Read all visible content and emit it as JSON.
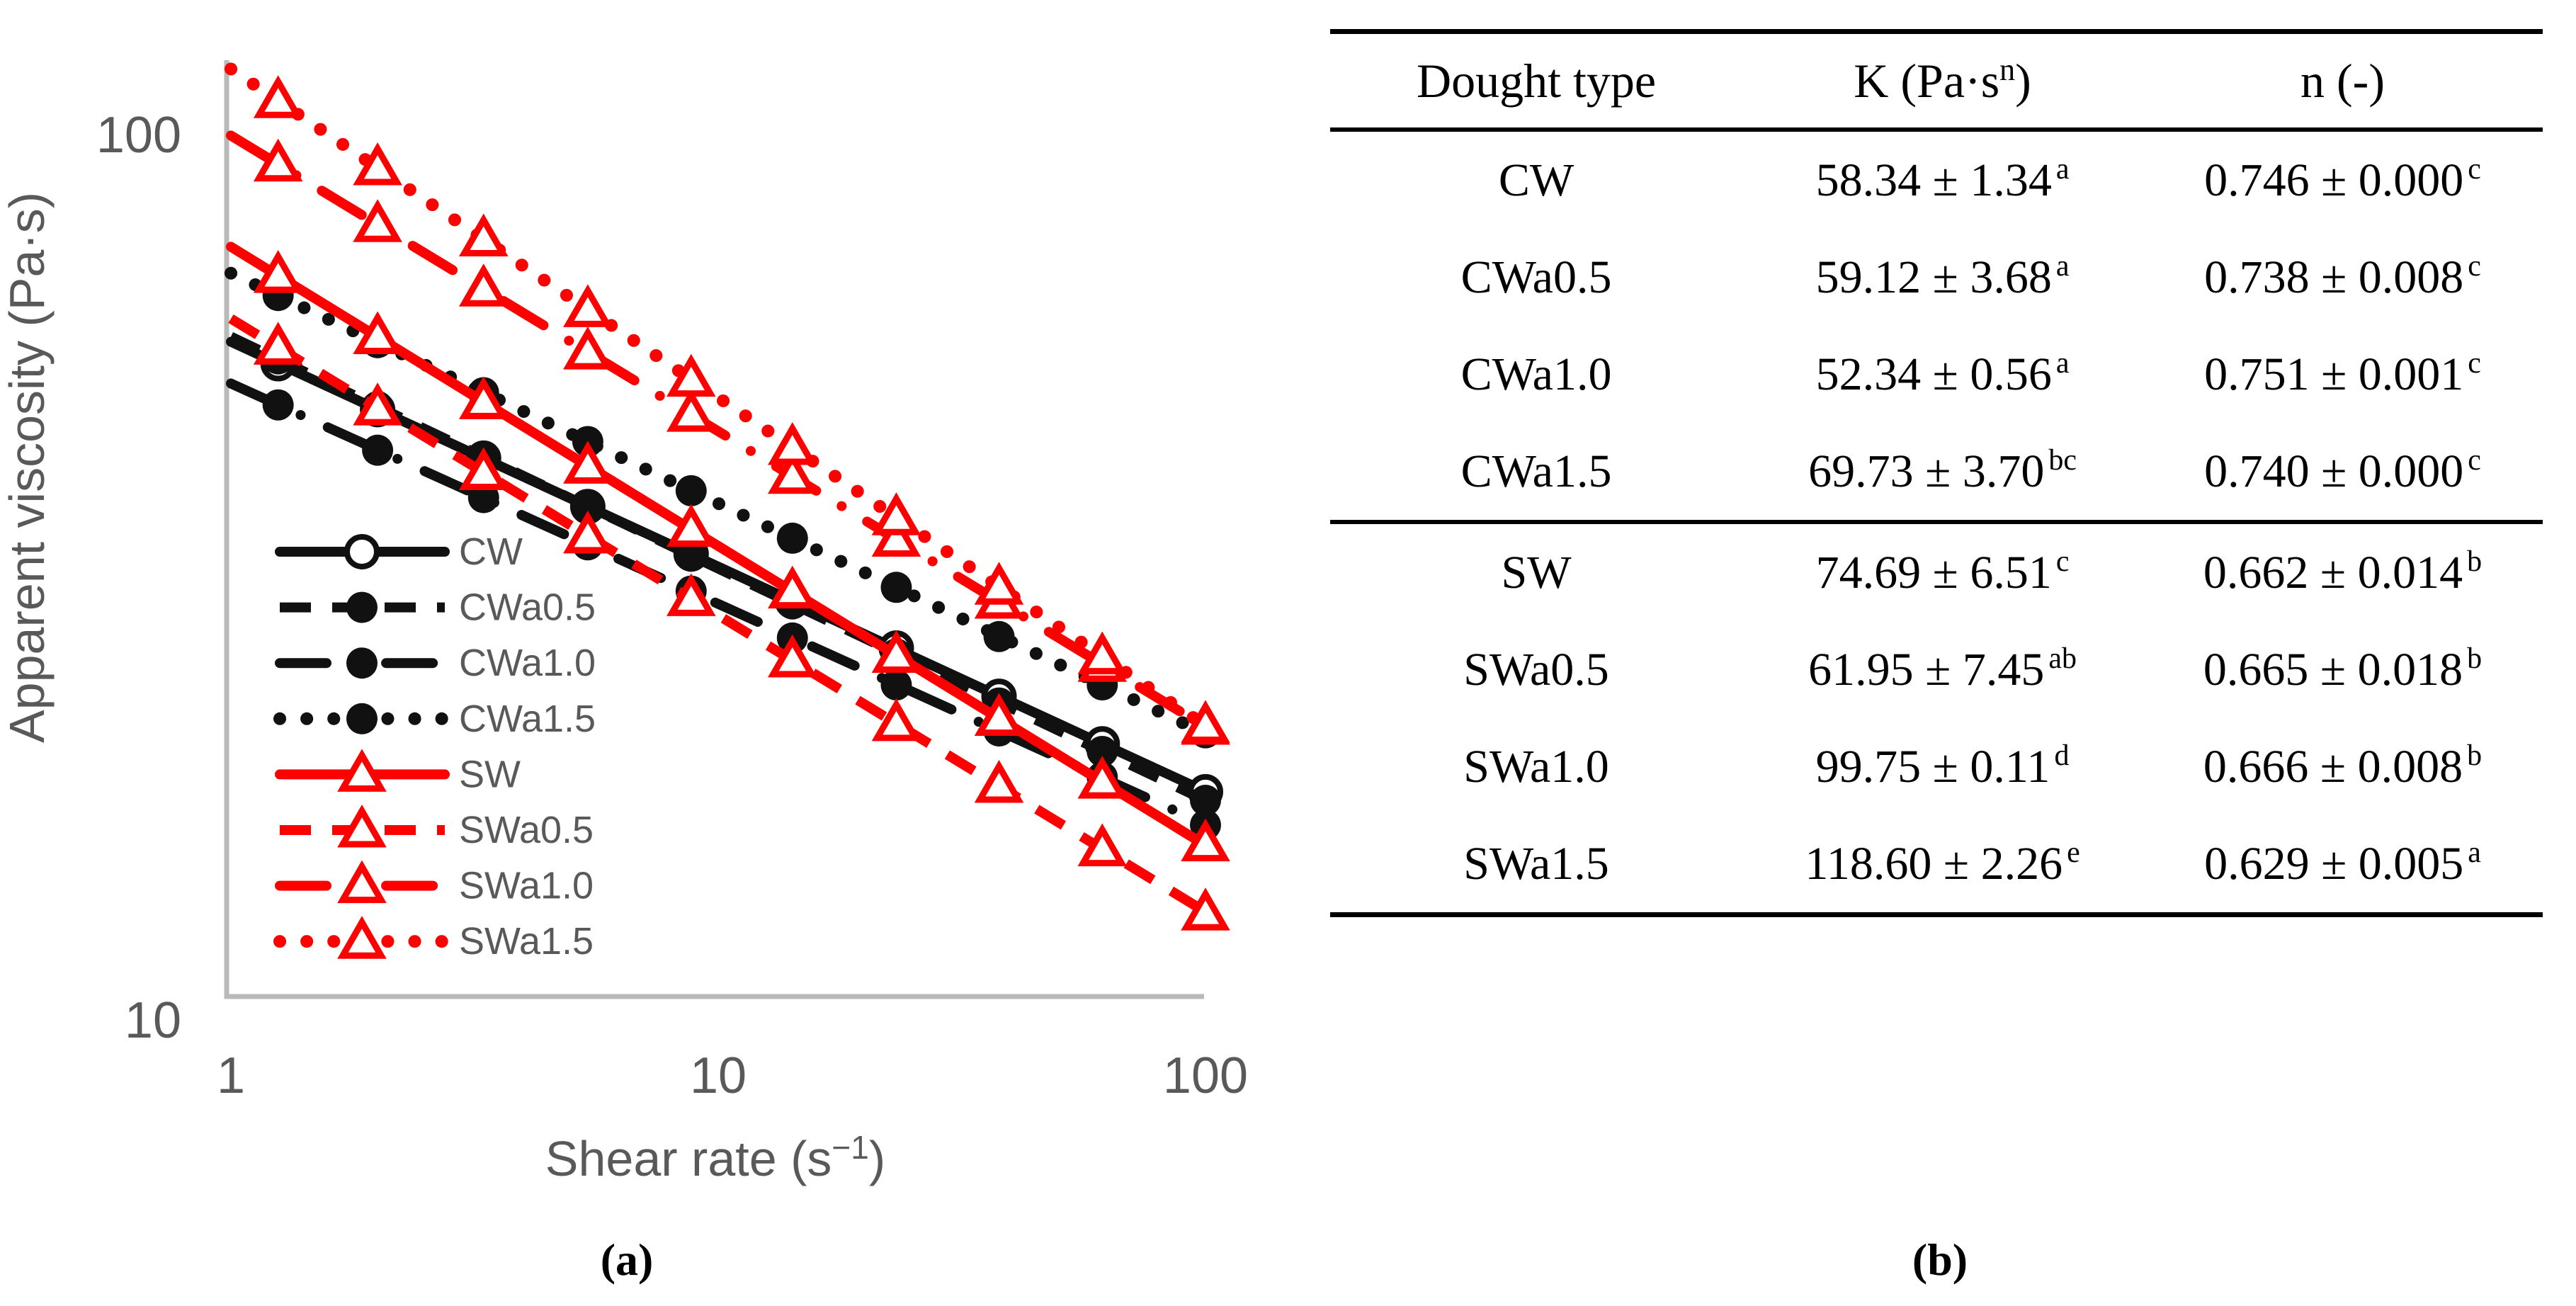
{
  "figure": {
    "caption_a": "(a)",
    "caption_b": "(b)"
  },
  "chart": {
    "y_axis": {
      "label": "Apparent viscosity (Pa·s)",
      "ticks": [
        "100",
        "10"
      ],
      "tick_values": [
        100,
        10
      ]
    },
    "x_axis": {
      "label_prefix": "Shear rate (s",
      "label_sup": "−1",
      "label_suffix": ")",
      "ticks": [
        "1",
        "10",
        "100"
      ],
      "tick_values": [
        1,
        10,
        100
      ]
    },
    "colors": {
      "black": "#111111",
      "red": "#ff0000",
      "axis_text": "#595959",
      "frame": "#b9b9b9"
    }
  },
  "chart_data": {
    "type": "line",
    "xscale": "log",
    "yscale": "log",
    "xlabel": "Shear rate (s⁻¹)",
    "ylabel": "Apparent viscosity (Pa·s)",
    "xlim": [
      1,
      100
    ],
    "ylim": [
      10.6,
      121
    ],
    "grid": false,
    "legend_position": "inside lower-left",
    "x": [
      1.25,
      2.0,
      3.3,
      5.4,
      8.8,
      14.2,
      23.2,
      37.7,
      61.4,
      100
    ],
    "series": [
      {
        "name": "CW",
        "color": "black",
        "line": "solid",
        "marker": "circle-open",
        "fit": {
          "K": 58.34,
          "n": 0.746
        },
        "values": [
          55.1,
          48.9,
          43.1,
          38.0,
          33.6,
          29.7,
          26.3,
          23.2,
          20.5,
          18.1
        ]
      },
      {
        "name": "CWa0.5",
        "color": "black",
        "line": "dashed",
        "marker": "circle-filled",
        "fit": {
          "K": 59.12,
          "n": 0.738
        },
        "values": [
          55.8,
          49.3,
          43.2,
          38.0,
          33.4,
          29.5,
          25.9,
          22.8,
          20.1,
          17.7
        ]
      },
      {
        "name": "CWa1.0",
        "color": "black",
        "line": "dashdot",
        "marker": "circle-filled",
        "fit": {
          "K": 52.34,
          "n": 0.751
        },
        "values": [
          49.5,
          44.0,
          38.9,
          34.4,
          30.5,
          27.0,
          23.9,
          21.2,
          18.8,
          16.6
        ]
      },
      {
        "name": "CWa1.5",
        "color": "black",
        "line": "dotted",
        "marker": "circle-filled",
        "fit": {
          "K": 69.73,
          "n": 0.74
        },
        "values": [
          65.8,
          58.2,
          51.1,
          45.0,
          39.6,
          35.0,
          30.8,
          27.1,
          23.9,
          21.1
        ]
      },
      {
        "name": "SW",
        "color": "red",
        "line": "solid",
        "marker": "triangle-open",
        "fit": {
          "K": 74.69,
          "n": 0.662
        },
        "values": [
          69.3,
          59.1,
          49.9,
          42.2,
          35.8,
          30.5,
          25.8,
          21.9,
          18.6,
          15.8
        ]
      },
      {
        "name": "SWa0.5",
        "color": "red",
        "line": "dashed",
        "marker": "triangle-open",
        "fit": {
          "K": 61.95,
          "n": 0.665
        },
        "values": [
          57.5,
          49.1,
          41.5,
          35.2,
          29.9,
          25.5,
          21.6,
          18.4,
          15.6,
          13.2
        ]
      },
      {
        "name": "SWa1.0",
        "color": "red",
        "line": "dashdot",
        "marker": "triangle-open",
        "fit": {
          "K": 99.75,
          "n": 0.666
        },
        "values": [
          92.6,
          79.1,
          66.9,
          56.8,
          48.3,
          41.1,
          34.9,
          29.7,
          25.2,
          21.4
        ]
      },
      {
        "name": "SWa1.5",
        "color": "red",
        "line": "dotted",
        "marker": "triangle-open",
        "fit": {
          "K": 118.6,
          "n": 0.629
        },
        "values": [
          109.2,
          91.7,
          76.2,
          63.4,
          52.9,
          44.3,
          36.9,
          30.8,
          25.7,
          21.5
        ]
      }
    ]
  },
  "table": {
    "headers": {
      "col1": "Dought type",
      "col2_prefix": "K (Pa·s",
      "col2_sup": "n",
      "col2_suffix": ")",
      "col3": "n (-)"
    },
    "group_break_after": 4,
    "rows": [
      {
        "dough": "CW",
        "k": "58.34 ± 1.34",
        "k_sup": "a",
        "n": "0.746 ± 0.000",
        "n_sup": "c"
      },
      {
        "dough": "CWa0.5",
        "k": "59.12 ± 3.68",
        "k_sup": "a",
        "n": "0.738 ± 0.008",
        "n_sup": "c"
      },
      {
        "dough": "CWa1.0",
        "k": "52.34 ± 0.56",
        "k_sup": "a",
        "n": "0.751 ± 0.001",
        "n_sup": "c"
      },
      {
        "dough": "CWa1.5",
        "k": "69.73 ± 3.70",
        "k_sup": "bc",
        "n": "0.740 ± 0.000",
        "n_sup": "c"
      },
      {
        "dough": "SW",
        "k": "74.69 ± 6.51",
        "k_sup": "c",
        "n": "0.662 ± 0.014",
        "n_sup": "b"
      },
      {
        "dough": "SWa0.5",
        "k": "61.95 ± 7.45",
        "k_sup": "ab",
        "n": "0.665 ± 0.018",
        "n_sup": "b"
      },
      {
        "dough": "SWa1.0",
        "k": "99.75 ± 0.11",
        "k_sup": "d",
        "n": "0.666 ± 0.008",
        "n_sup": "b"
      },
      {
        "dough": "SWa1.5",
        "k": "118.60 ± 2.26",
        "k_sup": "e",
        "n": "0.629 ± 0.005",
        "n_sup": "a"
      }
    ]
  }
}
